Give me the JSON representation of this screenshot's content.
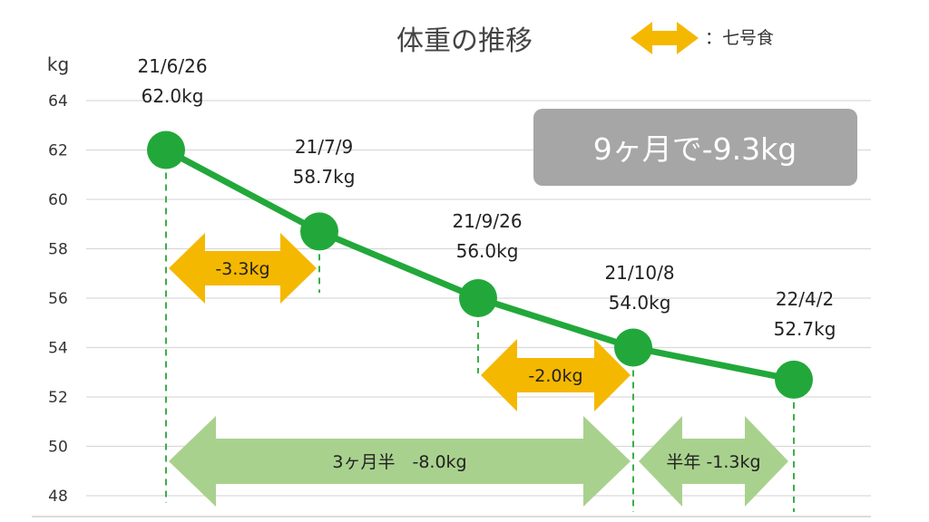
{
  "chart_data": {
    "type": "line",
    "title": "体重の推移",
    "ylabel": "kg",
    "ylim": [
      48,
      64
    ],
    "yticks": [
      48,
      50,
      52,
      54,
      56,
      58,
      60,
      62,
      64
    ],
    "grid": true,
    "line_color": "#22a83a",
    "points": [
      {
        "date": "21/6/26",
        "weight": 62.0,
        "label": "62.0kg"
      },
      {
        "date": "21/7/9",
        "weight": 58.7,
        "label": "58.7kg"
      },
      {
        "date": "21/9/26",
        "weight": 56.0,
        "label": "56.0kg"
      },
      {
        "date": "21/10/8",
        "weight": 54.0,
        "label": "54.0kg"
      },
      {
        "date": "22/4/2",
        "weight": 52.7,
        "label": "52.7kg"
      }
    ],
    "legend": {
      "text": "：七号食",
      "color": "#f5b800",
      "placement": "top-right"
    },
    "summary_box": "9ヶ月で-9.3kg",
    "annotations": [
      {
        "from": "21/6/26",
        "to": "21/7/9",
        "text": "-3.3kg",
        "color": "#f5b800"
      },
      {
        "from": "21/9/26",
        "to": "21/10/8",
        "text": "-2.0kg",
        "color": "#f5b800"
      },
      {
        "from": "21/6/26",
        "to": "21/10/8",
        "text": "3ヶ月半　-8.0kg",
        "color": "#a9d18e"
      },
      {
        "from": "21/10/8",
        "to": "22/4/2",
        "text": "半年 -1.3kg",
        "color": "#a9d18e"
      }
    ]
  }
}
